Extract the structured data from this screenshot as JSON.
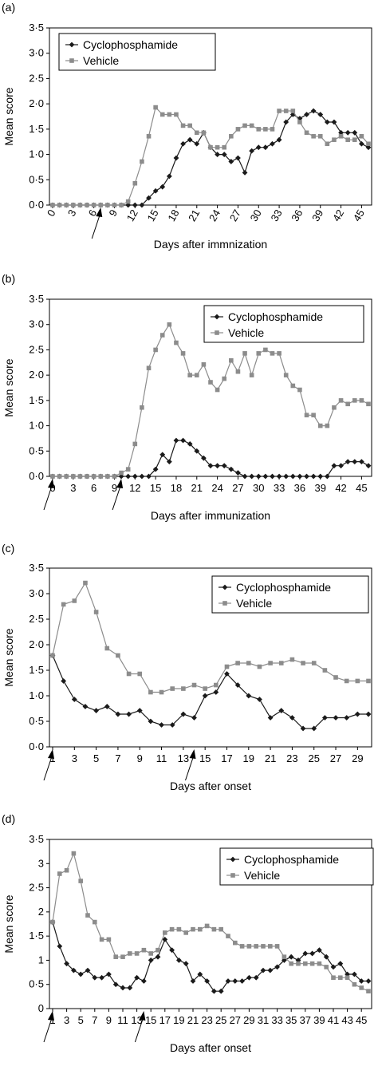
{
  "colors": {
    "cyclophosphamide": "#1a1a1a",
    "vehicle": "#8c8c8c",
    "axis": "#000000",
    "frame": "#000000"
  },
  "chart_data": [
    {
      "panel_label": "(a)",
      "type": "line",
      "xlabel": "Days after immnization",
      "ylabel": "Mean score",
      "xlim": [
        0,
        46
      ],
      "ylim": [
        0,
        3.5
      ],
      "xticks": [
        "0",
        "3",
        "6",
        "9",
        "12",
        "15",
        "18",
        "21",
        "24",
        "27",
        "30",
        "33",
        "36",
        "39",
        "42",
        "45"
      ],
      "yticks": [
        "0·0",
        "0·5",
        "1·0",
        "1·5",
        "2·0",
        "2·5",
        "3·0",
        "3·5"
      ],
      "arrows_at_day": [
        7
      ],
      "legend": "top-left",
      "series": [
        {
          "name": "Cyclophosphamide",
          "marker": "diamond",
          "x": [
            0,
            1,
            2,
            3,
            4,
            5,
            6,
            7,
            8,
            9,
            10,
            11,
            12,
            13,
            14,
            15,
            16,
            17,
            18,
            19,
            20,
            21,
            22,
            23,
            24,
            25,
            26,
            27,
            28,
            29,
            30,
            31,
            32,
            33,
            34,
            35,
            36,
            37,
            38,
            39,
            40,
            41,
            42,
            43,
            44,
            45,
            46
          ],
          "y": [
            0,
            0,
            0,
            0,
            0,
            0,
            0,
            0,
            0,
            0,
            0,
            0,
            0,
            0,
            0.14,
            0.28,
            0.36,
            0.57,
            0.93,
            1.21,
            1.29,
            1.21,
            1.43,
            1.14,
            1.0,
            1.0,
            0.86,
            0.93,
            0.64,
            1.07,
            1.14,
            1.14,
            1.21,
            1.29,
            1.64,
            1.79,
            1.71,
            1.79,
            1.86,
            1.79,
            1.64,
            1.64,
            1.43,
            1.43,
            1.43,
            1.21,
            1.14
          ]
        },
        {
          "name": "Vehicle",
          "marker": "square",
          "x": [
            0,
            1,
            2,
            3,
            4,
            5,
            6,
            7,
            8,
            9,
            10,
            11,
            12,
            13,
            14,
            15,
            16,
            17,
            18,
            19,
            20,
            21,
            22,
            23,
            24,
            25,
            26,
            27,
            28,
            29,
            30,
            31,
            32,
            33,
            34,
            35,
            36,
            37,
            38,
            39,
            40,
            41,
            42,
            43,
            44,
            45,
            46
          ],
          "y": [
            0,
            0,
            0,
            0,
            0,
            0,
            0,
            0,
            0,
            0,
            0,
            0.07,
            0.43,
            0.86,
            1.36,
            1.93,
            1.79,
            1.79,
            1.79,
            1.57,
            1.57,
            1.43,
            1.43,
            1.14,
            1.14,
            1.14,
            1.36,
            1.5,
            1.57,
            1.57,
            1.5,
            1.5,
            1.5,
            1.86,
            1.86,
            1.86,
            1.64,
            1.43,
            1.36,
            1.36,
            1.21,
            1.29,
            1.36,
            1.29,
            1.29,
            1.36,
            1.21
          ]
        }
      ]
    },
    {
      "panel_label": "(b)",
      "type": "line",
      "xlabel": "Days after immunization",
      "ylabel": "Mean score",
      "xlim": [
        0,
        46
      ],
      "ylim": [
        0,
        3.5
      ],
      "xticks": [
        "0",
        "3",
        "6",
        "9",
        "12",
        "15",
        "18",
        "21",
        "24",
        "27",
        "30",
        "33",
        "36",
        "39",
        "42",
        "45"
      ],
      "yticks": [
        "0·0",
        "0·5",
        "1·0",
        "1·5",
        "2·0",
        "2·5",
        "3·0",
        "3·5"
      ],
      "arrows_at_day": [
        0,
        10
      ],
      "legend": "top-right",
      "series": [
        {
          "name": "Cyclophosphamide",
          "marker": "diamond",
          "x": [
            0,
            1,
            2,
            3,
            4,
            5,
            6,
            7,
            8,
            9,
            10,
            11,
            12,
            13,
            14,
            15,
            16,
            17,
            18,
            19,
            20,
            21,
            22,
            23,
            24,
            25,
            26,
            27,
            28,
            29,
            30,
            31,
            32,
            33,
            34,
            35,
            36,
            37,
            38,
            39,
            40,
            41,
            42,
            43,
            44,
            45,
            46
          ],
          "y": [
            0,
            0,
            0,
            0,
            0,
            0,
            0,
            0,
            0,
            0,
            0,
            0,
            0,
            0,
            0,
            0.14,
            0.43,
            0.29,
            0.71,
            0.71,
            0.64,
            0.5,
            0.36,
            0.21,
            0.21,
            0.21,
            0.14,
            0.07,
            0,
            0,
            0,
            0,
            0,
            0,
            0,
            0,
            0,
            0,
            0,
            0,
            0,
            0.21,
            0.21,
            0.29,
            0.29,
            0.29,
            0.21
          ]
        },
        {
          "name": "Vehicle",
          "marker": "square",
          "x": [
            0,
            1,
            2,
            3,
            4,
            5,
            6,
            7,
            8,
            9,
            10,
            11,
            12,
            13,
            14,
            15,
            16,
            17,
            18,
            19,
            20,
            21,
            22,
            23,
            24,
            25,
            26,
            27,
            28,
            29,
            30,
            31,
            32,
            33,
            34,
            35,
            36,
            37,
            38,
            39,
            40,
            41,
            42,
            43,
            44,
            45,
            46
          ],
          "y": [
            0,
            0,
            0,
            0,
            0,
            0,
            0,
            0,
            0,
            0,
            0.07,
            0.14,
            0.64,
            1.36,
            2.14,
            2.5,
            2.79,
            3.0,
            2.64,
            2.43,
            2.0,
            2.0,
            2.21,
            1.86,
            1.71,
            1.93,
            2.29,
            2.07,
            2.43,
            2.0,
            2.43,
            2.5,
            2.43,
            2.43,
            2.0,
            1.79,
            1.71,
            1.21,
            1.21,
            1.0,
            1.0,
            1.36,
            1.5,
            1.43,
            1.5,
            1.5,
            1.43
          ]
        }
      ]
    },
    {
      "panel_label": "(c)",
      "type": "line",
      "xlabel": "Days after onset",
      "ylabel": "Mean score",
      "xlim": [
        1,
        30
      ],
      "ylim": [
        0,
        3.5
      ],
      "xticks": [
        "1",
        "3",
        "5",
        "7",
        "9",
        "11",
        "13",
        "15",
        "17",
        "19",
        "21",
        "23",
        "25",
        "27",
        "29"
      ],
      "yticks": [
        "0·0",
        "0·5",
        "1·0",
        "1·5",
        "2·0",
        "2·5",
        "3·0",
        "3·5"
      ],
      "arrows_at_day": [
        1,
        14
      ],
      "legend": "top-right",
      "series": [
        {
          "name": "Cyclophosphamide",
          "marker": "diamond",
          "x": [
            1,
            2,
            3,
            4,
            5,
            6,
            7,
            8,
            9,
            10,
            11,
            12,
            13,
            14,
            15,
            16,
            17,
            18,
            19,
            20,
            21,
            22,
            23,
            24,
            25,
            26,
            27,
            28,
            29,
            30
          ],
          "y": [
            1.79,
            1.29,
            0.93,
            0.79,
            0.71,
            0.79,
            0.64,
            0.64,
            0.71,
            0.5,
            0.43,
            0.43,
            0.64,
            0.57,
            1.0,
            1.07,
            1.43,
            1.21,
            1.0,
            0.93,
            0.57,
            0.71,
            0.57,
            0.36,
            0.36,
            0.57,
            0.57,
            0.57,
            0.64,
            0.64
          ]
        },
        {
          "name": "Vehicle",
          "marker": "square",
          "x": [
            1,
            2,
            3,
            4,
            5,
            6,
            7,
            8,
            9,
            10,
            11,
            12,
            13,
            14,
            15,
            16,
            17,
            18,
            19,
            20,
            21,
            22,
            23,
            24,
            25,
            26,
            27,
            28,
            29,
            30
          ],
          "y": [
            1.79,
            2.79,
            2.86,
            3.21,
            2.64,
            1.93,
            1.79,
            1.43,
            1.43,
            1.07,
            1.07,
            1.14,
            1.14,
            1.21,
            1.14,
            1.21,
            1.57,
            1.64,
            1.64,
            1.57,
            1.64,
            1.64,
            1.71,
            1.64,
            1.64,
            1.5,
            1.36,
            1.29,
            1.29,
            1.29
          ]
        }
      ]
    },
    {
      "panel_label": "(d)",
      "type": "line",
      "xlabel": "Days after onset",
      "ylabel": "Mean score",
      "xlim": [
        1,
        46
      ],
      "ylim": [
        0,
        3.5
      ],
      "xticks": [
        "1",
        "3",
        "5",
        "7",
        "9",
        "11",
        "13",
        "15",
        "17",
        "19",
        "21",
        "23",
        "25",
        "27",
        "29",
        "31",
        "33",
        "35",
        "37",
        "39",
        "41",
        "43",
        "45"
      ],
      "yticks": [
        "0",
        "0·5",
        "1",
        "1·5",
        "2",
        "2·5",
        "3",
        "3·5"
      ],
      "arrows_at_day": [
        1,
        14
      ],
      "legend": "top-right",
      "series": [
        {
          "name": "Cyclophosphamide",
          "marker": "diamond",
          "x": [
            1,
            2,
            3,
            4,
            5,
            6,
            7,
            8,
            9,
            10,
            11,
            12,
            13,
            14,
            15,
            16,
            17,
            18,
            19,
            20,
            21,
            22,
            23,
            24,
            25,
            26,
            27,
            28,
            29,
            30,
            31,
            32,
            33,
            34,
            35,
            36,
            37,
            38,
            39,
            40,
            41,
            42,
            43,
            44,
            45,
            46
          ],
          "y": [
            1.79,
            1.29,
            0.93,
            0.79,
            0.71,
            0.79,
            0.64,
            0.64,
            0.71,
            0.5,
            0.43,
            0.43,
            0.64,
            0.57,
            1.0,
            1.07,
            1.43,
            1.21,
            1.0,
            0.93,
            0.57,
            0.71,
            0.57,
            0.36,
            0.36,
            0.57,
            0.57,
            0.57,
            0.64,
            0.64,
            0.79,
            0.79,
            0.86,
            1.0,
            1.07,
            1.0,
            1.14,
            1.14,
            1.21,
            1.07,
            0.86,
            0.93,
            0.71,
            0.71,
            0.57,
            0.57
          ]
        },
        {
          "name": "Vehicle",
          "marker": "square",
          "x": [
            1,
            2,
            3,
            4,
            5,
            6,
            7,
            8,
            9,
            10,
            11,
            12,
            13,
            14,
            15,
            16,
            17,
            18,
            19,
            20,
            21,
            22,
            23,
            24,
            25,
            26,
            27,
            28,
            29,
            30,
            31,
            32,
            33,
            34,
            35,
            36,
            37,
            38,
            39,
            40,
            41,
            42,
            43,
            44,
            45,
            46
          ],
          "y": [
            1.79,
            2.79,
            2.86,
            3.21,
            2.64,
            1.93,
            1.79,
            1.43,
            1.43,
            1.07,
            1.07,
            1.14,
            1.14,
            1.21,
            1.14,
            1.21,
            1.57,
            1.64,
            1.64,
            1.57,
            1.64,
            1.64,
            1.71,
            1.64,
            1.64,
            1.5,
            1.36,
            1.29,
            1.29,
            1.29,
            1.29,
            1.29,
            1.29,
            1.07,
            0.93,
            0.93,
            0.93,
            0.93,
            0.93,
            0.86,
            0.64,
            0.64,
            0.64,
            0.5,
            0.43,
            0.36
          ]
        }
      ]
    }
  ]
}
